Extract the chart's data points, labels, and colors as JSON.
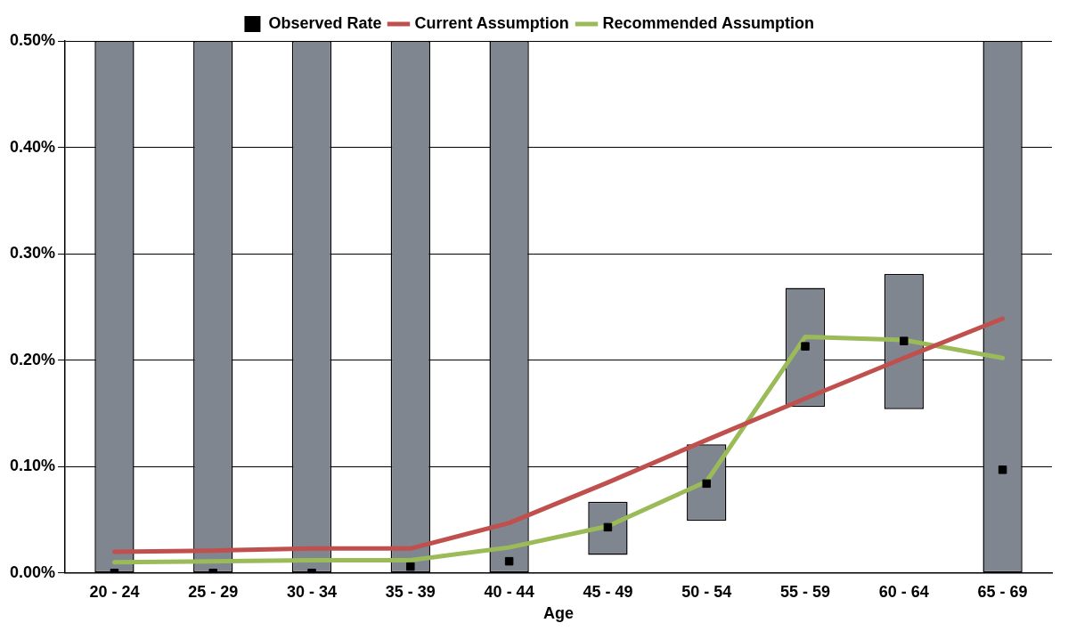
{
  "chart_data": {
    "type": "bar",
    "xlabel": "Age",
    "categories": [
      "20 - 24",
      "25 - 29",
      "30 - 34",
      "35 - 39",
      "40 - 44",
      "45 - 49",
      "50 - 54",
      "55 - 59",
      "60 - 64",
      "65 - 69"
    ],
    "series": [
      {
        "color": "#7f8690",
        "base": [
          0,
          0,
          0,
          0,
          0,
          0.017,
          0.049,
          0.156,
          0.154,
          0
        ],
        "values": [
          0.5,
          0.5,
          0.5,
          0.5,
          0.5,
          0.05,
          0.072,
          0.112,
          0.127,
          0.5
        ]
      },
      {
        "type": "scatter",
        "name": "Observed Rate",
        "color": "#000000",
        "marker": "square",
        "values": [
          0,
          0,
          0,
          0.006,
          0.011,
          0.043,
          0.084,
          0.213,
          0.218,
          0.097
        ]
      },
      {
        "type": "line",
        "name": "Current Assumption",
        "color": "#c0504d",
        "marker": "none",
        "values": [
          0.02,
          0.021,
          0.023,
          0.023,
          0.047,
          0.085,
          0.125,
          0.164,
          0.202,
          0.239
        ]
      },
      {
        "type": "line",
        "name": "Recommended Assumption",
        "color": "#9bbb59",
        "marker": "none",
        "values": [
          0.01,
          0.011,
          0.012,
          0.012,
          0.024,
          0.044,
          0.086,
          0.222,
          0.219,
          0.202
        ]
      }
    ],
    "ylim": [
      0,
      0.5
    ],
    "yticks": [
      {
        "value": 0,
        "label": "0.00%"
      },
      {
        "value": 0.1,
        "label": "0.10%"
      },
      {
        "value": 0.2,
        "label": "0.20%"
      },
      {
        "value": 0.3,
        "label": "0.30%"
      },
      {
        "value": 0.4,
        "label": "0.40%"
      },
      {
        "value": 0.5,
        "label": "0.50%"
      }
    ],
    "grid": "y",
    "legend": "top"
  }
}
